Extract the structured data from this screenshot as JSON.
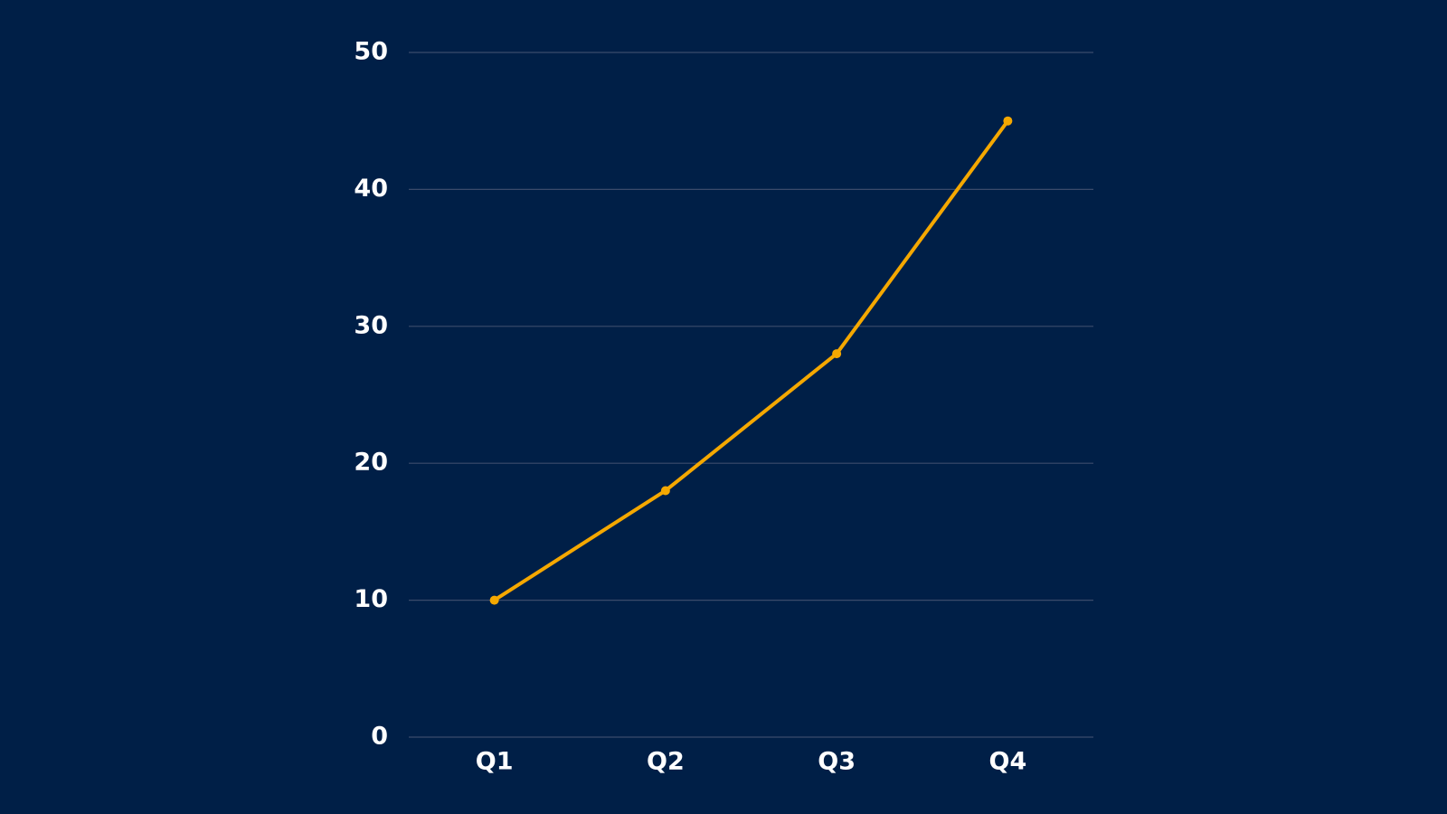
{
  "chart_data": {
    "type": "line",
    "categories": [
      "Q1",
      "Q2",
      "Q3",
      "Q4"
    ],
    "series": [
      {
        "color": "#f5a800",
        "values": [
          10,
          18,
          28,
          45
        ]
      }
    ],
    "ylim": [
      0,
      50
    ],
    "yticks": [
      0,
      10,
      20,
      30,
      40,
      50
    ],
    "grid": true,
    "background": "#001f47"
  }
}
